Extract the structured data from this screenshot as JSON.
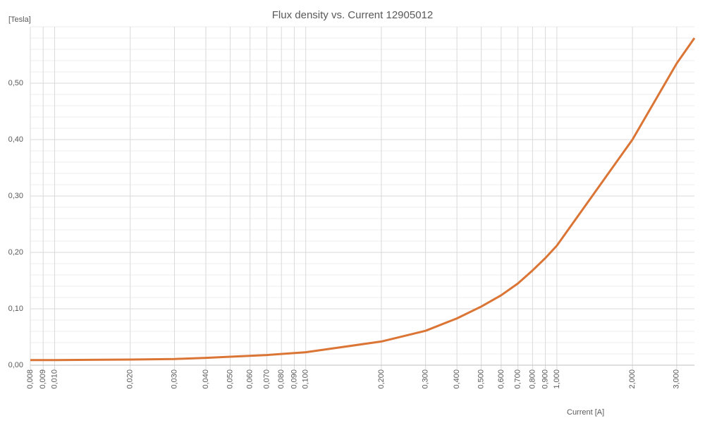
{
  "chart_data": {
    "type": "line",
    "title": "Flux density vs. Current 12905012",
    "y_label": "[Tesla]",
    "x_label": "Current [A]",
    "x_scale": "log",
    "grid": true,
    "xlim": [
      0.008,
      3.53
    ],
    "ylim": [
      0,
      0.6
    ],
    "xticks": [
      {
        "value": 0.008,
        "label": "0,008"
      },
      {
        "value": 0.009,
        "label": "0,009"
      },
      {
        "value": 0.01,
        "label": "0,010"
      },
      {
        "value": 0.02,
        "label": "0,020"
      },
      {
        "value": 0.03,
        "label": "0,030"
      },
      {
        "value": 0.04,
        "label": "0,040"
      },
      {
        "value": 0.05,
        "label": "0,050"
      },
      {
        "value": 0.06,
        "label": "0,060"
      },
      {
        "value": 0.07,
        "label": "0,070"
      },
      {
        "value": 0.08,
        "label": "0,080"
      },
      {
        "value": 0.09,
        "label": "0,090"
      },
      {
        "value": 0.1,
        "label": "0,100"
      },
      {
        "value": 0.2,
        "label": "0,200"
      },
      {
        "value": 0.3,
        "label": "0,300"
      },
      {
        "value": 0.4,
        "label": "0,400"
      },
      {
        "value": 0.5,
        "label": "0,500"
      },
      {
        "value": 0.6,
        "label": "0,600"
      },
      {
        "value": 0.7,
        "label": "0,700"
      },
      {
        "value": 0.8,
        "label": "0,800"
      },
      {
        "value": 0.9,
        "label": "0,900"
      },
      {
        "value": 1,
        "label": "1,000"
      },
      {
        "value": 2,
        "label": "2,000"
      },
      {
        "value": 3,
        "label": "3,000"
      }
    ],
    "yticks": [
      {
        "value": 0,
        "label": "0,00"
      },
      {
        "value": 0.1,
        "label": "0,10"
      },
      {
        "value": 0.2,
        "label": "0,20"
      },
      {
        "value": 0.3,
        "label": "0,30"
      },
      {
        "value": 0.4,
        "label": "0,40"
      },
      {
        "value": 0.5,
        "label": "0,50"
      }
    ],
    "x": [
      0.008,
      0.01,
      0.02,
      0.03,
      0.04,
      0.05,
      0.07,
      0.1,
      0.2,
      0.3,
      0.4,
      0.5,
      0.6,
      0.7,
      0.8,
      0.9,
      1,
      2,
      3,
      3.53
    ],
    "series": [
      {
        "color": "#db7535",
        "values": [
          0.009,
          0.009,
          0.01,
          0.011,
          0.013,
          0.015,
          0.018,
          0.023,
          0.042,
          0.061,
          0.083,
          0.104,
          0.124,
          0.145,
          0.168,
          0.19,
          0.212,
          0.4,
          0.535,
          0.58
        ]
      }
    ]
  }
}
